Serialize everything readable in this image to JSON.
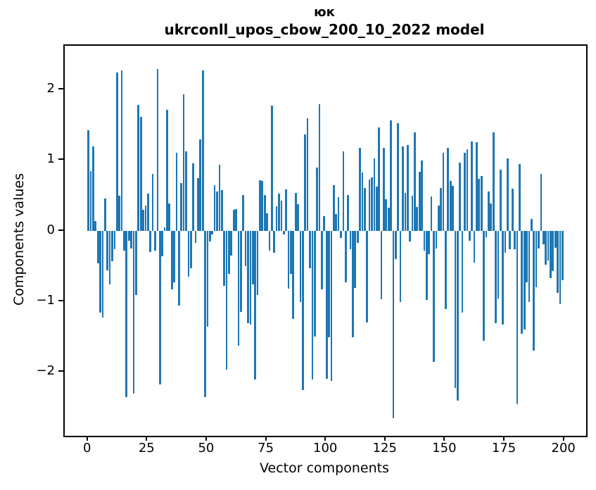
{
  "chart": {
    "suptitle": "юк",
    "title": "ukrconll_upos_cbow_200_10_2022 model",
    "xlabel": "Vector components",
    "ylabel": "Components values"
  },
  "chart_data": {
    "type": "bar",
    "title": "юк",
    "subtitle": "ukrconll_upos_cbow_200_10_2022 model",
    "xlabel": "Vector components",
    "ylabel": "Components values",
    "x_ticks": [
      0,
      25,
      50,
      75,
      100,
      125,
      150,
      175,
      200
    ],
    "y_ticks": [
      -2,
      -1,
      0,
      1,
      2
    ],
    "xlim": [
      -9.95,
      208.95
    ],
    "ylim": [
      -2.9,
      2.63
    ],
    "grid": false,
    "legend": "none",
    "bar_color": "#1f77b4",
    "bar_width_fraction": 0.8,
    "n_components": 200,
    "values": [
      1.43,
      0.85,
      1.2,
      0.14,
      -0.45,
      -1.15,
      -1.22,
      0.46,
      -0.55,
      -0.75,
      -0.42,
      -0.25,
      2.25,
      0.5,
      2.28,
      -0.27,
      -2.35,
      -0.14,
      -0.24,
      -2.3,
      -0.9,
      1.79,
      1.62,
      0.3,
      0.36,
      0.53,
      -0.29,
      0.81,
      -0.27,
      2.3,
      -2.17,
      -0.35,
      0.05,
      1.72,
      0.39,
      -0.82,
      -0.72,
      1.11,
      -1.05,
      0.68,
      1.94,
      1.13,
      -0.64,
      -0.52,
      0.96,
      -0.17,
      0.75,
      1.3,
      2.28,
      -2.35,
      -1.35,
      -0.15,
      -0.05,
      0.65,
      0.56,
      0.94,
      0.58,
      -0.77,
      -1.96,
      -0.6,
      -0.34,
      0.3,
      0.31,
      -1.62,
      -1.14,
      0.51,
      -0.49,
      -1.3,
      -1.32,
      -0.75,
      -2.1,
      -0.9,
      0.72,
      0.71,
      0.51,
      0.25,
      -0.27,
      1.78,
      -0.3,
      0.35,
      0.53,
      0.43,
      -0.05,
      0.59,
      -0.81,
      -0.6,
      -1.24,
      0.54,
      0.38,
      -1.0,
      -2.25,
      1.37,
      1.6,
      -0.52,
      -2.1,
      -1.49,
      0.9,
      1.8,
      -0.82,
      0.21,
      -2.09,
      -1.5,
      -2.12,
      0.65,
      0.24,
      0.48,
      -0.1,
      1.13,
      -0.72,
      0.51,
      -0.25,
      -1.5,
      -0.8,
      -0.17,
      1.18,
      0.83,
      0.61,
      -1.29,
      0.73,
      0.76,
      1.03,
      0.63,
      1.47,
      -0.96,
      1.18,
      0.45,
      0.33,
      1.57,
      -2.65,
      -0.39,
      1.53,
      -1.0,
      1.2,
      0.54,
      1.22,
      -0.15,
      0.5,
      1.4,
      0.34,
      0.84,
      1.0,
      -0.27,
      -0.97,
      -0.32,
      0.49,
      -1.85,
      -0.24,
      0.36,
      0.61,
      1.11,
      -1.1,
      1.18,
      0.71,
      0.64,
      -2.22,
      -2.4,
      0.97,
      -1.15,
      1.11,
      1.16,
      -0.14,
      1.27,
      -0.44,
      1.26,
      0.74,
      0.78,
      -1.55,
      -0.09,
      0.56,
      0.39,
      1.4,
      -1.3,
      -0.95,
      0.87,
      -1.32,
      -0.3,
      1.03,
      -0.25,
      0.6,
      -0.25,
      -2.45,
      0.95,
      -1.45,
      -1.39,
      -0.72,
      -1.0,
      0.17,
      -1.69,
      -0.79,
      -0.24,
      0.81,
      -0.19,
      -0.47,
      -0.41,
      -0.66,
      -0.56,
      -0.23,
      -0.87,
      -1.03,
      -0.69
    ]
  }
}
